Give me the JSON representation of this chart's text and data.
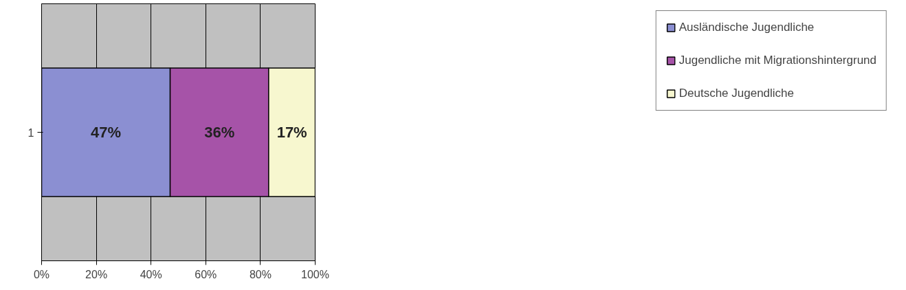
{
  "chart_data": {
    "type": "bar",
    "orientation": "horizontal",
    "stacked": true,
    "categories": [
      "1"
    ],
    "series": [
      {
        "name": "Ausländische Jugendliche",
        "color": "#8b8fd2",
        "values": [
          47
        ],
        "value_labels": [
          "47%"
        ]
      },
      {
        "name": "Jugendliche mit Migrationshintergrund",
        "color": "#a653a8",
        "values": [
          36
        ],
        "value_labels": [
          "36%"
        ]
      },
      {
        "name": "Deutsche Jugendliche",
        "color": "#f7f7cf",
        "values": [
          17
        ],
        "value_labels": [
          "17%"
        ]
      }
    ],
    "xlim": [
      0,
      100
    ],
    "xticks": [
      {
        "value": 0,
        "label": "0%"
      },
      {
        "value": 20,
        "label": "20%"
      },
      {
        "value": 40,
        "label": "40%"
      },
      {
        "value": 60,
        "label": "60%"
      },
      {
        "value": 80,
        "label": "80%"
      },
      {
        "value": 100,
        "label": "100%"
      }
    ],
    "grid": "x",
    "legend": "right"
  }
}
